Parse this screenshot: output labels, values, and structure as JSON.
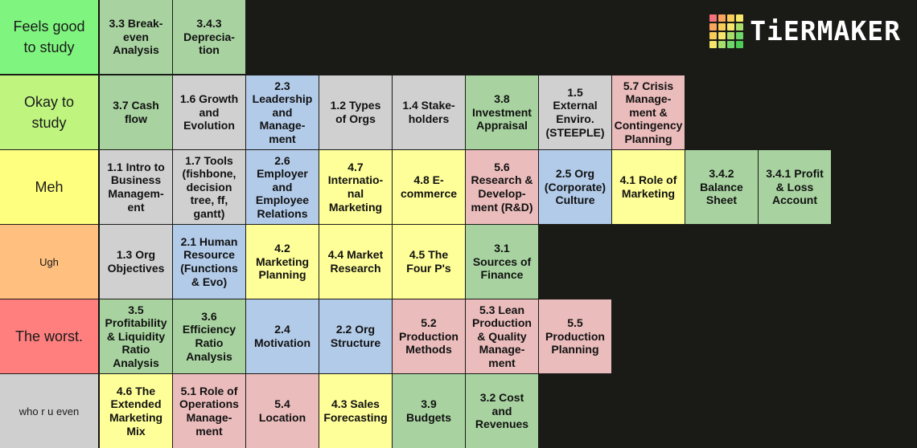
{
  "logo": {
    "text": "TiERMAKER",
    "grid_colors": [
      "#f4727b",
      "#f9a55d",
      "#f7cc58",
      "#f5e76b",
      "#f9a55d",
      "#f7cc58",
      "#f5e76b",
      "#a8df6b",
      "#f7cc58",
      "#f5e76b",
      "#a8df6b",
      "#6fd66a",
      "#f5e76b",
      "#a8df6b",
      "#6fd66a",
      "#4dcc55"
    ]
  },
  "colors": {
    "green": "#a8d3a0",
    "gray": "#d0d0d0",
    "blue": "#b2cbe9",
    "yellow": "#ffff99",
    "pink": "#ebbcbc"
  },
  "tiers": [
    {
      "label": "Feels good to study",
      "color": "#7ff57f",
      "label_size": "large",
      "items": [
        {
          "text": "3.3 Break-\neven\nAnalysis",
          "color": "green"
        },
        {
          "text": "3.4.3\nDeprecia-\ntion",
          "color": "green"
        }
      ]
    },
    {
      "label": "Okay to study",
      "color": "#bff57f",
      "label_size": "large",
      "items": [
        {
          "text": "3.7 Cash\nflow",
          "color": "green"
        },
        {
          "text": "1.6 Growth\nand\nEvolution",
          "color": "gray"
        },
        {
          "text": "2.3\nLeadership\nand\nManage-\nment",
          "color": "blue"
        },
        {
          "text": "1.2 Types\nof Orgs",
          "color": "gray"
        },
        {
          "text": "1.4 Stake-\nholders",
          "color": "gray"
        },
        {
          "text": "3.8\nInvestment\nAppraisal",
          "color": "green"
        },
        {
          "text": "1.5\nExternal\nEnviro.\n(STEEPLE)",
          "color": "gray"
        },
        {
          "text": "5.7 Crisis\nManage-\nment &\nContingency\nPlanning",
          "color": "pink"
        }
      ]
    },
    {
      "label": "Meh",
      "color": "#ffff7f",
      "label_size": "large",
      "items": [
        {
          "text": "1.1 Intro to\nBusiness\nManagem-\nent",
          "color": "gray"
        },
        {
          "text": "1.7 Tools\n(fishbone,\ndecision\ntree, ff,\ngantt)",
          "color": "gray"
        },
        {
          "text": "2.6\nEmployer\nand\nEmployee\nRelations",
          "color": "blue"
        },
        {
          "text": "4.7\nInternatio-\nnal\nMarketing",
          "color": "yellow"
        },
        {
          "text": "4.8 E-\ncommerce",
          "color": "yellow"
        },
        {
          "text": "5.6\nResearch &\nDevelop-\nment (R&D)",
          "color": "pink"
        },
        {
          "text": "2.5 Org\n(Corporate)\nCulture",
          "color": "blue"
        },
        {
          "text": "4.1 Role of\nMarketing",
          "color": "yellow"
        },
        {
          "text": "3.4.2\nBalance\nSheet",
          "color": "green"
        },
        {
          "text": "3.4.1 Profit\n& Loss\nAccount",
          "color": "green"
        }
      ]
    },
    {
      "label": "Ugh",
      "color": "#ffbf7f",
      "label_size": "small",
      "items": [
        {
          "text": "1.3 Org\nObjectives",
          "color": "gray"
        },
        {
          "text": "2.1 Human\nResource\n(Functions\n& Evo)",
          "color": "blue"
        },
        {
          "text": "4.2\nMarketing\nPlanning",
          "color": "yellow"
        },
        {
          "text": "4.4 Market\nResearch",
          "color": "yellow"
        },
        {
          "text": "4.5 The\nFour P's",
          "color": "yellow"
        },
        {
          "text": "3.1\nSources of\nFinance",
          "color": "green"
        }
      ]
    },
    {
      "label": "The worst.",
      "color": "#ff7f7f",
      "label_size": "large",
      "items": [
        {
          "text": "3.5\nProfitability\n& Liquidity\nRatio\nAnalysis",
          "color": "green"
        },
        {
          "text": "3.6\nEfficiency\nRatio\nAnalysis",
          "color": "green"
        },
        {
          "text": "2.4\nMotivation",
          "color": "blue"
        },
        {
          "text": "2.2 Org\nStructure",
          "color": "blue"
        },
        {
          "text": "5.2\nProduction\nMethods",
          "color": "pink"
        },
        {
          "text": "5.3 Lean\nProduction\n& Quality\nManage-\nment",
          "color": "pink"
        },
        {
          "text": "5.5\nProduction\nPlanning",
          "color": "pink"
        }
      ]
    },
    {
      "label": "who r u even",
      "color": "#cfcfcf",
      "label_size": "small",
      "items": [
        {
          "text": "4.6 The\nExtended\nMarketing\nMix",
          "color": "yellow"
        },
        {
          "text": "5.1 Role of\nOperations\nManage-\nment",
          "color": "pink"
        },
        {
          "text": "5.4\nLocation",
          "color": "pink"
        },
        {
          "text": "4.3 Sales\nForecasting",
          "color": "yellow"
        },
        {
          "text": "3.9\nBudgets",
          "color": "green"
        },
        {
          "text": "3.2 Cost\nand\nRevenues",
          "color": "green"
        }
      ]
    }
  ]
}
